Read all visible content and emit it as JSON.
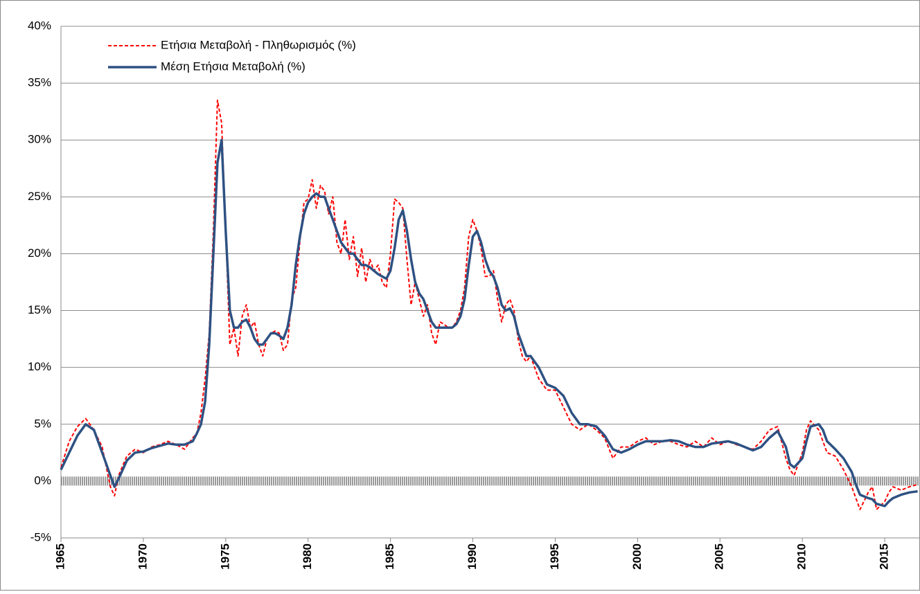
{
  "chart_data": {
    "type": "line",
    "x": [
      1965,
      1965.5,
      1966,
      1966.5,
      1967,
      1967.5,
      1968,
      1968.25,
      1968.5,
      1969,
      1969.5,
      1970,
      1970.5,
      1971,
      1971.5,
      1972,
      1972.5,
      1973,
      1973.25,
      1973.5,
      1973.75,
      1974,
      1974.25,
      1974.5,
      1974.75,
      1975,
      1975.25,
      1975.5,
      1975.75,
      1976,
      1976.25,
      1976.5,
      1976.75,
      1977,
      1977.25,
      1977.5,
      1977.75,
      1978,
      1978.25,
      1978.5,
      1978.75,
      1979,
      1979.25,
      1979.5,
      1979.75,
      1980,
      1980.25,
      1980.5,
      1980.75,
      1981,
      1981.25,
      1981.5,
      1981.75,
      1982,
      1982.25,
      1982.5,
      1982.75,
      1983,
      1983.25,
      1983.5,
      1983.75,
      1984,
      1984.25,
      1984.5,
      1984.75,
      1985,
      1985.25,
      1985.5,
      1985.75,
      1986,
      1986.25,
      1986.5,
      1986.75,
      1987,
      1987.25,
      1987.5,
      1987.75,
      1988,
      1988.25,
      1988.5,
      1988.75,
      1989,
      1989.25,
      1989.5,
      1989.75,
      1990,
      1990.25,
      1990.5,
      1990.75,
      1991,
      1991.25,
      1991.5,
      1991.75,
      1992,
      1992.25,
      1992.5,
      1992.75,
      1993,
      1993.25,
      1993.5,
      1993.75,
      1994,
      1994.5,
      1995,
      1995.5,
      1996,
      1996.5,
      1997,
      1997.5,
      1998,
      1998.5,
      1999,
      1999.5,
      2000,
      2000.5,
      2001,
      2001.5,
      2002,
      2002.5,
      2003,
      2003.5,
      2004,
      2004.5,
      2005,
      2005.5,
      2006,
      2006.5,
      2007,
      2007.5,
      2008,
      2008.5,
      2009,
      2009.25,
      2009.5,
      2010,
      2010.25,
      2010.5,
      2011,
      2011.25,
      2011.5,
      2012,
      2012.5,
      2013,
      2013.25,
      2013.5,
      2014,
      2014.25,
      2014.5,
      2015,
      2015.25,
      2015.5,
      2016,
      2016.5,
      2017
    ],
    "series": [
      {
        "name": "Ετήσια Μεταβολή - Πληθωρισμός (%)",
        "color": "#ff0000",
        "dashed": true,
        "values": [
          1.2,
          3.5,
          4.8,
          5.5,
          4.5,
          3.0,
          -0.5,
          -1.3,
          0.5,
          2.2,
          2.8,
          2.5,
          3.0,
          3.2,
          3.5,
          3.2,
          2.8,
          3.8,
          4.2,
          6.0,
          9.0,
          13.0,
          22.0,
          33.5,
          31.5,
          22.0,
          12.0,
          13.5,
          11.0,
          14.5,
          15.5,
          13.5,
          14.0,
          12.0,
          11.0,
          12.5,
          13.0,
          13.2,
          13.0,
          11.5,
          12.0,
          16.0,
          17.0,
          21.0,
          24.5,
          24.8,
          26.5,
          24.0,
          26.0,
          25.5,
          23.5,
          25.0,
          21.0,
          20.0,
          23.0,
          19.5,
          21.5,
          18.0,
          20.5,
          17.5,
          19.5,
          18.5,
          19.0,
          17.5,
          17.0,
          20.0,
          24.8,
          24.5,
          24.0,
          19.5,
          15.5,
          17.5,
          16.0,
          14.5,
          15.5,
          13.0,
          12.0,
          14.0,
          13.8,
          13.5,
          13.5,
          14.0,
          15.0,
          17.0,
          21.5,
          23.0,
          22.0,
          20.5,
          18.0,
          18.0,
          18.5,
          16.0,
          14.0,
          15.5,
          16.0,
          15.0,
          12.5,
          11.0,
          10.5,
          11.0,
          10.0,
          9.0,
          8.0,
          8.0,
          6.5,
          5.0,
          4.5,
          5.0,
          4.5,
          3.8,
          2.0,
          3.0,
          3.0,
          3.5,
          3.8,
          3.2,
          3.5,
          3.5,
          3.2,
          3.0,
          3.5,
          3.0,
          3.8,
          3.2,
          3.5,
          3.2,
          3.0,
          2.8,
          3.5,
          4.5,
          4.8,
          2.0,
          1.0,
          0.5,
          2.5,
          4.5,
          5.3,
          4.5,
          3.5,
          2.5,
          2.2,
          1.0,
          -0.5,
          -1.5,
          -2.5,
          -1.0,
          -0.5,
          -2.5,
          -1.8,
          -1.0,
          -0.5,
          -0.8,
          -0.5,
          -0.3
        ]
      },
      {
        "name": "Μέση Ετήσια Μεταβολή (%)",
        "color": "#2e5182",
        "dashed": false,
        "values": [
          1.0,
          2.5,
          4.0,
          5.0,
          4.5,
          2.5,
          0.5,
          -0.5,
          0.2,
          1.8,
          2.5,
          2.6,
          2.9,
          3.1,
          3.3,
          3.2,
          3.2,
          3.5,
          4.2,
          5.0,
          7.0,
          12.0,
          20.0,
          28.0,
          30.0,
          22.0,
          15.0,
          13.5,
          13.5,
          14.0,
          14.2,
          13.5,
          12.5,
          12.0,
          12.0,
          12.5,
          13.0,
          13.0,
          12.8,
          12.5,
          13.5,
          15.5,
          19.0,
          21.5,
          23.5,
          24.5,
          25.0,
          25.3,
          25.0,
          25.0,
          24.0,
          23.0,
          22.0,
          21.0,
          20.5,
          20.0,
          20.0,
          19.5,
          19.0,
          19.0,
          18.8,
          18.5,
          18.2,
          18.0,
          17.8,
          18.5,
          20.5,
          23.0,
          23.8,
          22.0,
          19.5,
          17.5,
          16.5,
          16.0,
          15.0,
          14.0,
          13.5,
          13.5,
          13.5,
          13.5,
          13.5,
          13.8,
          14.5,
          16.0,
          19.0,
          21.5,
          22.0,
          21.0,
          19.5,
          18.5,
          18.0,
          17.0,
          15.5,
          15.0,
          15.2,
          14.5,
          13.0,
          12.0,
          11.0,
          11.0,
          10.5,
          10.0,
          8.5,
          8.2,
          7.5,
          6.0,
          5.0,
          5.0,
          4.8,
          4.0,
          2.8,
          2.5,
          2.8,
          3.2,
          3.5,
          3.5,
          3.5,
          3.6,
          3.5,
          3.2,
          3.0,
          3.0,
          3.3,
          3.4,
          3.5,
          3.3,
          3.0,
          2.7,
          3.0,
          3.8,
          4.4,
          3.0,
          1.5,
          1.2,
          2.0,
          3.5,
          4.8,
          5.0,
          4.5,
          3.5,
          2.8,
          2.0,
          0.8,
          -0.3,
          -1.2,
          -1.5,
          -1.6,
          -2.0,
          -2.2,
          -1.8,
          -1.5,
          -1.2,
          -1.0,
          -0.9
        ]
      }
    ],
    "xlim": [
      1965,
      2017.1
    ],
    "xticks": [
      1965,
      1970,
      1975,
      1980,
      1985,
      1990,
      1995,
      2000,
      2005,
      2010,
      2015
    ],
    "ylim": [
      -5,
      40
    ],
    "yticks": [
      {
        "value": -5,
        "label": "-5%"
      },
      {
        "value": 0,
        "label": "0%"
      },
      {
        "value": 5,
        "label": "5%"
      },
      {
        "value": 10,
        "label": "10%"
      },
      {
        "value": 15,
        "label": "15%"
      },
      {
        "value": 20,
        "label": "20%"
      },
      {
        "value": 25,
        "label": "25%"
      },
      {
        "value": 30,
        "label": "30%"
      },
      {
        "value": 35,
        "label": "35%"
      },
      {
        "value": 40,
        "label": "40%"
      }
    ],
    "grid": true,
    "legend": "upper left"
  }
}
